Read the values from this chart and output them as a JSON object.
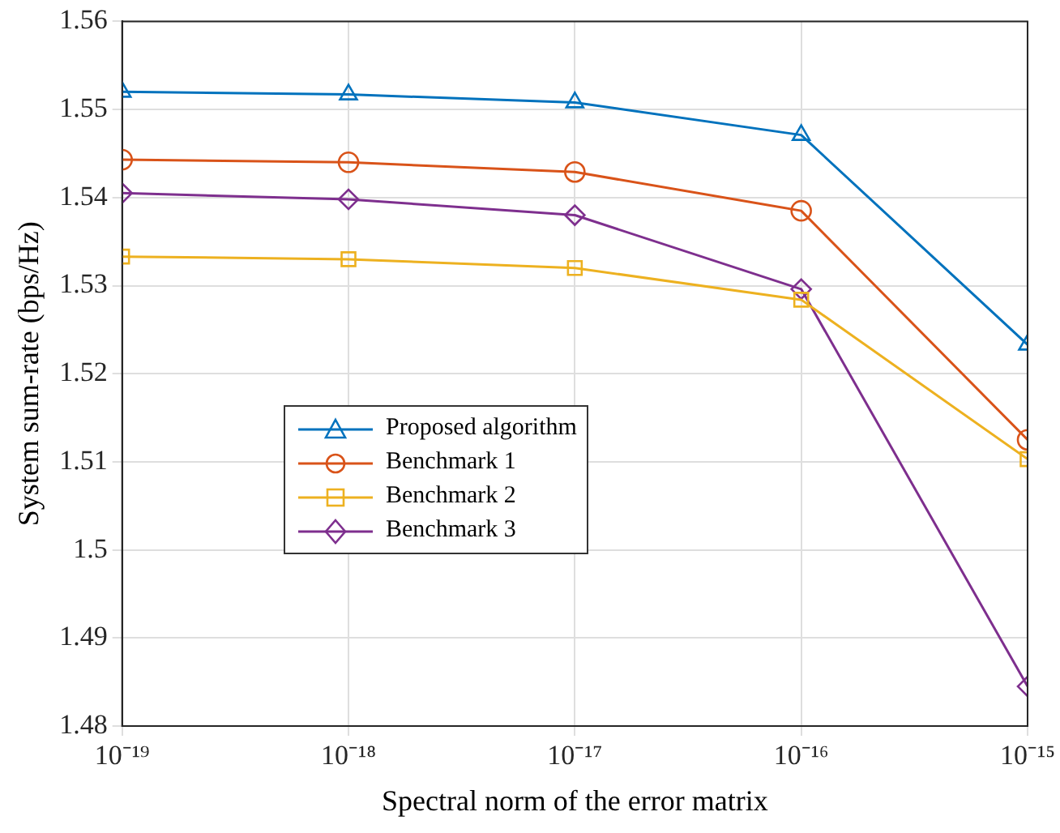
{
  "chart_data": {
    "type": "line",
    "xlabel": "Spectral norm of the error matrix",
    "ylabel": "System sum-rate (bps/Hz)",
    "x": [
      1e-19,
      1e-18,
      1e-17,
      1e-16,
      1e-15
    ],
    "series": [
      {
        "name": "Proposed algorithm",
        "color": "#0072bd",
        "marker": "triangle",
        "values": [
          1.552,
          1.5517,
          1.5508,
          1.5471,
          1.5233
        ]
      },
      {
        "name": "Benchmark 1",
        "color": "#d95319",
        "marker": "circle",
        "values": [
          1.5443,
          1.544,
          1.5429,
          1.5385,
          1.5125
        ]
      },
      {
        "name": "Benchmark 2",
        "color": "#edb120",
        "marker": "square",
        "values": [
          1.5333,
          1.533,
          1.532,
          1.5284,
          1.5103
        ]
      },
      {
        "name": "Benchmark 3",
        "color": "#7e2f8e",
        "marker": "diamond",
        "values": [
          1.5405,
          1.5398,
          1.538,
          1.5296,
          1.4845
        ]
      }
    ],
    "log": "x",
    "xlim": [
      1e-19,
      1e-15
    ],
    "xticks": [
      {
        "value": 1e-19,
        "label": "10⁻¹⁹"
      },
      {
        "value": 1e-18,
        "label": "10⁻¹⁸"
      },
      {
        "value": 1e-17,
        "label": "10⁻¹⁷"
      },
      {
        "value": 1e-16,
        "label": "10⁻¹⁶"
      },
      {
        "value": 1e-15,
        "label": "10⁻¹⁵"
      }
    ],
    "ylim": [
      1.48,
      1.56
    ],
    "yticks": [
      1.48,
      1.49,
      1.5,
      1.51,
      1.52,
      1.53,
      1.54,
      1.55,
      1.56
    ],
    "grid": true,
    "legend": "center left",
    "line_style": "solid"
  }
}
